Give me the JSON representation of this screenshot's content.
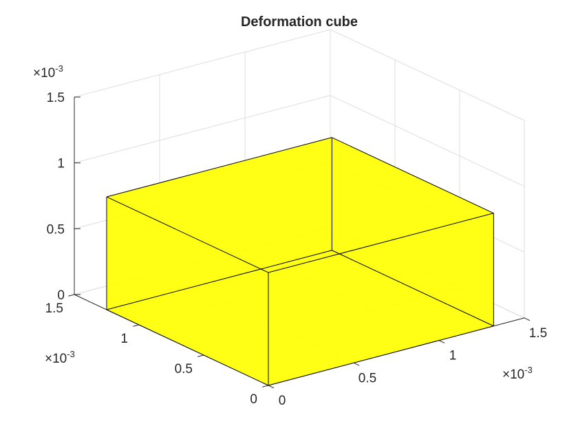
{
  "chart_data": {
    "type": "3d-patch",
    "title": "Deformation cube",
    "axes": {
      "x": {
        "label": "",
        "range": [
          0,
          0.0015
        ],
        "ticks": [
          0,
          0.0005,
          0.001,
          0.0015
        ],
        "tick_labels": [
          "0",
          "0.5",
          "1",
          "1.5"
        ],
        "exponent_label": "×10",
        "exponent_power": "-3"
      },
      "y": {
        "label": "",
        "range": [
          0,
          0.0015
        ],
        "ticks": [
          0,
          0.0005,
          0.001,
          0.0015
        ],
        "tick_labels": [
          "0",
          "0.5",
          "1",
          "1.5"
        ],
        "exponent_label": "×10",
        "exponent_power": "-3"
      },
      "z": {
        "label": "",
        "range": [
          0,
          0.0015
        ],
        "ticks": [
          0,
          0.0005,
          0.001,
          0.0015
        ],
        "tick_labels": [
          "0",
          "0.5",
          "1",
          "1.5"
        ],
        "exponent_label": "×10",
        "exponent_power": "-3"
      }
    },
    "grid": true,
    "cube": {
      "x": [
        0,
        0.00132
      ],
      "y": [
        0,
        0.00125
      ],
      "z": [
        0,
        0.000857
      ],
      "face_color": "#ffff00",
      "face_alpha": 0.7,
      "edge_color": "#000000"
    }
  }
}
